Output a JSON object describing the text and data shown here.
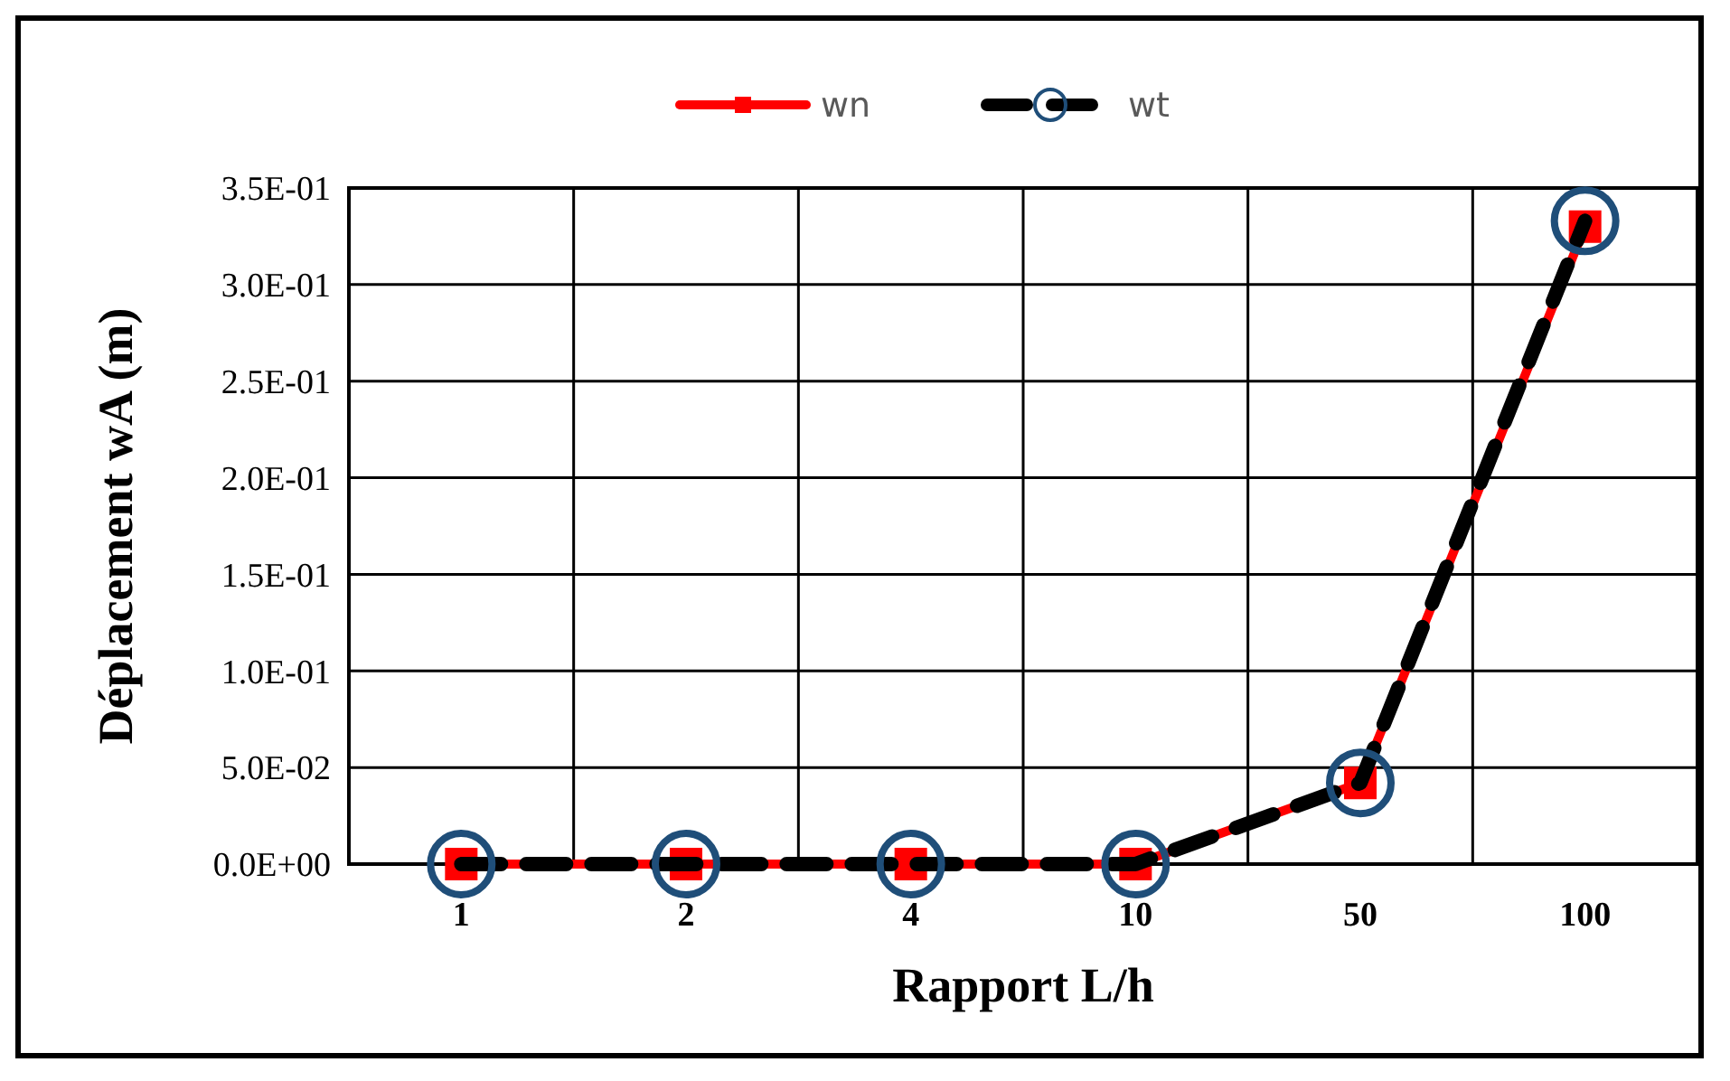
{
  "chart_data": {
    "type": "line",
    "xlabel": "Rapport L/h",
    "ylabel": "Déplacement wA (m)",
    "categories": [
      "1",
      "2",
      "4",
      "10",
      "50",
      "100"
    ],
    "series": [
      {
        "name": "wn",
        "color": "#ff0000",
        "values": [
          0,
          0,
          0,
          0,
          0.042,
          0.33
        ],
        "marker": "square",
        "line_style": "solid"
      },
      {
        "name": "wt",
        "color": "#000000",
        "values": [
          0,
          0,
          0,
          0,
          0.042,
          0.333
        ],
        "marker": "circle",
        "line_style": "dashed"
      }
    ],
    "ylim": [
      0,
      0.35
    ],
    "yticks": [
      {
        "value": 0,
        "label": "0.0E+00"
      },
      {
        "value": 0.05,
        "label": "5.0E-02"
      },
      {
        "value": 0.1,
        "label": "1.0E-01"
      },
      {
        "value": 0.15,
        "label": "1.5E-01"
      },
      {
        "value": 0.2,
        "label": "2.0E-01"
      },
      {
        "value": 0.25,
        "label": "2.5E-01"
      },
      {
        "value": 0.3,
        "label": "3.0E-01"
      },
      {
        "value": 0.35,
        "label": "3.5E-01"
      }
    ],
    "grid": true,
    "legend": "top"
  }
}
